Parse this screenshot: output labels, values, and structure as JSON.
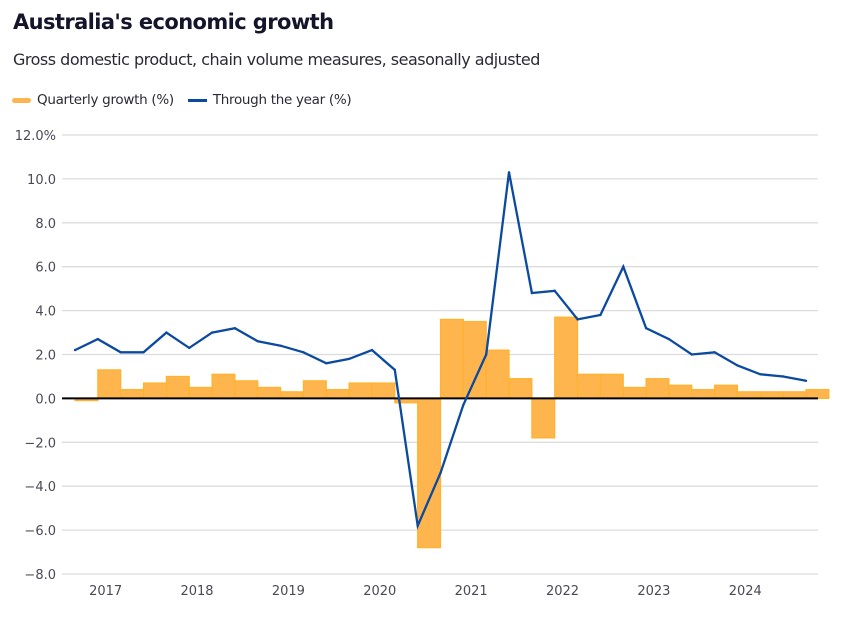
{
  "header": {
    "title": "Australia's economic growth",
    "subtitle": "Gross domestic product, chain volume measures, seasonally adjusted"
  },
  "legend": [
    {
      "label": "Quarterly growth (%)",
      "color": "#FFB54D",
      "type": "bar"
    },
    {
      "label": "Through the year (%)",
      "color": "#0B4A9F",
      "type": "line"
    }
  ],
  "chart_data": {
    "type": "bar+line",
    "title": "Australia's economic growth",
    "subtitle": "Gross domestic product, chain volume measures, seasonally adjusted",
    "xlabel": "",
    "ylabel": "",
    "ylim": [
      -8,
      12
    ],
    "yticks": [
      12,
      10,
      8,
      6,
      4,
      2,
      0,
      -2,
      -4,
      -6,
      -8
    ],
    "ytick_labels": [
      "12.0%",
      "10.0",
      "8.0",
      "6.0",
      "4.0",
      "2.0",
      "0.0",
      "−2.0",
      "−4.0",
      "−6.0",
      "−8.0"
    ],
    "xticks": [
      "2017",
      "2018",
      "2019",
      "2020",
      "2021",
      "2022",
      "2023",
      "2024"
    ],
    "grid": true,
    "legend_position": "top-left",
    "x": [
      "Sep 2016",
      "Dec 2016",
      "Mar 2017",
      "Jun 2017",
      "Sep 2017",
      "Dec 2017",
      "Mar 2018",
      "Jun 2018",
      "Sep 2018",
      "Dec 2018",
      "Mar 2019",
      "Jun 2019",
      "Sep 2019",
      "Dec 2019",
      "Mar 2020",
      "Jun 2020",
      "Sep 2020",
      "Dec 2020",
      "Mar 2021",
      "Jun 2021",
      "Sep 2021",
      "Dec 2021",
      "Mar 2022",
      "Jun 2022",
      "Sep 2022",
      "Dec 2022",
      "Mar 2023",
      "Jun 2023",
      "Sep 2023",
      "Dec 2023",
      "Mar 2024",
      "Jun 2024",
      "Sep 2024"
    ],
    "series": [
      {
        "name": "Quarterly growth (%)",
        "type": "bar",
        "color": "#FFB54D",
        "values": [
          -0.1,
          1.3,
          0.4,
          0.7,
          1.0,
          0.5,
          1.1,
          0.8,
          0.5,
          0.3,
          0.8,
          0.4,
          0.7,
          0.7,
          -0.2,
          -6.8,
          3.6,
          3.5,
          2.2,
          0.9,
          -1.8,
          3.7,
          1.1,
          1.1,
          0.5,
          0.9,
          0.6,
          0.4,
          0.6,
          0.3,
          0.3,
          0.3,
          0.4
        ]
      },
      {
        "name": "Through the year (%)",
        "type": "line",
        "color": "#0B4A9F",
        "values": [
          2.2,
          2.7,
          2.1,
          2.1,
          3.0,
          2.3,
          3.0,
          3.2,
          2.6,
          2.4,
          2.1,
          1.6,
          1.8,
          2.2,
          1.3,
          -5.8,
          -3.4,
          -0.3,
          2.0,
          10.3,
          4.8,
          4.9,
          3.6,
          3.8,
          6.0,
          3.2,
          2.7,
          2.0,
          2.1,
          1.5,
          1.1,
          1.0,
          0.8
        ]
      }
    ]
  }
}
